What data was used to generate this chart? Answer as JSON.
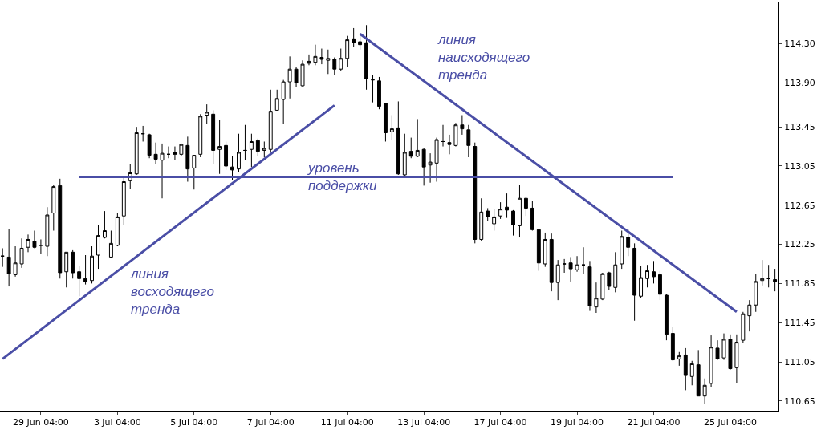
{
  "chart_data": {
    "type": "candlestick",
    "categories": [
      null,
      null,
      null,
      null,
      null,
      null,
      "29 Jun 04:00",
      null,
      null,
      null,
      null,
      null,
      null,
      null,
      null,
      null,
      null,
      null,
      "3 Jul 04:00",
      null,
      null,
      null,
      null,
      null,
      null,
      null,
      null,
      null,
      null,
      null,
      "5 Jul 04:00",
      null,
      null,
      null,
      null,
      null,
      null,
      null,
      null,
      null,
      null,
      null,
      "7 Jul 04:00",
      null,
      null,
      null,
      null,
      null,
      null,
      null,
      null,
      null,
      null,
      null,
      "11 Jul 04:00",
      null,
      null,
      null,
      null,
      null,
      null,
      null,
      null,
      null,
      null,
      null,
      "13 Jul 04:00",
      null,
      null,
      null,
      null,
      null,
      null,
      null,
      null,
      null,
      null,
      null,
      "17 Jul 04:00",
      null,
      null,
      null,
      null,
      null,
      null,
      null,
      null,
      null,
      null,
      null,
      "19 Jul 04:00",
      null,
      null,
      null,
      null,
      null,
      null,
      null,
      null,
      null,
      null,
      null,
      "21 Jul 04:00",
      null,
      null,
      null,
      null,
      null,
      null,
      null,
      null,
      null,
      null,
      null,
      "25 Jul 04:00",
      null,
      null,
      null,
      null,
      null,
      null,
      null
    ],
    "ohlc": [
      [
        112.13,
        112.21,
        112.02,
        112.13
      ],
      [
        112.12,
        112.41,
        111.82,
        111.95
      ],
      [
        111.94,
        112.23,
        111.92,
        112.06
      ],
      [
        112.05,
        112.31,
        112.01,
        112.21
      ],
      [
        112.22,
        112.35,
        112.17,
        112.3
      ],
      [
        112.28,
        112.39,
        112.21,
        112.22
      ],
      [
        112.24,
        112.3,
        112.15,
        112.24
      ],
      [
        112.23,
        112.63,
        112.13,
        112.55
      ],
      [
        112.57,
        112.86,
        112.39,
        112.84
      ],
      [
        112.85,
        112.92,
        111.9,
        111.96
      ],
      [
        111.97,
        112.17,
        111.81,
        112.17
      ],
      [
        112.17,
        112.19,
        111.9,
        111.96
      ],
      [
        111.97,
        112.03,
        111.72,
        111.9
      ],
      [
        111.9,
        112.14,
        111.84,
        111.87
      ],
      [
        111.88,
        112.23,
        111.85,
        112.13
      ],
      [
        112.14,
        112.45,
        112.0,
        112.34
      ],
      [
        112.32,
        112.59,
        112.31,
        112.39
      ],
      [
        112.12,
        112.39,
        112.11,
        112.26
      ],
      [
        112.24,
        112.57,
        112.23,
        112.53
      ],
      [
        112.54,
        112.94,
        112.45,
        112.89
      ],
      [
        112.9,
        113.07,
        112.82,
        112.98
      ],
      [
        112.97,
        113.45,
        112.96,
        113.39
      ],
      [
        113.38,
        113.46,
        113.3,
        113.38
      ],
      [
        113.37,
        113.38,
        113.13,
        113.16
      ],
      [
        113.17,
        113.29,
        113.07,
        113.12
      ],
      [
        113.11,
        113.28,
        112.72,
        113.18
      ],
      [
        113.17,
        113.25,
        113.13,
        113.17
      ],
      [
        113.19,
        113.25,
        113.11,
        113.17
      ],
      [
        113.17,
        113.28,
        113.15,
        113.27
      ],
      [
        113.26,
        113.35,
        112.89,
        113.02
      ],
      [
        113.03,
        113.16,
        112.81,
        113.16
      ],
      [
        113.17,
        113.58,
        113.14,
        113.56
      ],
      [
        113.57,
        113.68,
        113.48,
        113.6
      ],
      [
        113.58,
        113.62,
        113.07,
        113.21
      ],
      [
        113.22,
        113.52,
        112.97,
        113.25
      ],
      [
        113.26,
        113.3,
        113.01,
        113.05
      ],
      [
        113.04,
        113.15,
        112.91,
        113.01
      ],
      [
        113.02,
        113.38,
        112.99,
        113.19
      ],
      [
        113.21,
        113.47,
        113.11,
        113.21
      ],
      [
        113.22,
        113.38,
        113.04,
        113.3
      ],
      [
        113.31,
        113.33,
        113.15,
        113.2
      ],
      [
        113.21,
        113.3,
        113.14,
        113.23
      ],
      [
        113.22,
        113.83,
        113.19,
        113.61
      ],
      [
        113.62,
        113.83,
        113.62,
        113.74
      ],
      [
        113.73,
        113.93,
        113.48,
        113.91
      ],
      [
        113.91,
        114.17,
        113.74,
        114.04
      ],
      [
        114.04,
        114.06,
        113.86,
        113.9
      ],
      [
        113.87,
        114.13,
        113.86,
        114.09
      ],
      [
        114.1,
        114.19,
        114.08,
        114.12
      ],
      [
        114.11,
        114.29,
        114.08,
        114.17
      ],
      [
        114.16,
        114.25,
        114.09,
        114.14
      ],
      [
        114.13,
        114.24,
        113.99,
        114.15
      ],
      [
        114.14,
        114.16,
        113.98,
        114.04
      ],
      [
        114.04,
        114.25,
        114.02,
        114.15
      ],
      [
        114.15,
        114.38,
        114.06,
        114.34
      ],
      [
        114.35,
        114.46,
        114.27,
        114.31
      ],
      [
        114.32,
        114.39,
        114.24,
        114.29
      ],
      [
        114.31,
        114.49,
        113.83,
        113.94
      ],
      [
        113.93,
        113.98,
        113.7,
        113.93
      ],
      [
        113.92,
        113.96,
        113.63,
        113.66
      ],
      [
        113.69,
        113.69,
        113.3,
        113.39
      ],
      [
        113.4,
        113.57,
        113.32,
        113.43
      ],
      [
        113.44,
        113.71,
        112.96,
        112.97
      ],
      [
        112.96,
        113.38,
        112.95,
        113.19
      ],
      [
        113.2,
        113.34,
        113.13,
        113.15
      ],
      [
        113.15,
        113.53,
        113.14,
        113.21
      ],
      [
        113.22,
        113.23,
        112.85,
        113.04
      ],
      [
        113.06,
        113.18,
        112.88,
        113.09
      ],
      [
        113.08,
        113.34,
        112.89,
        113.32
      ],
      [
        113.3,
        113.47,
        113.25,
        113.3
      ],
      [
        113.29,
        113.37,
        113.17,
        113.27
      ],
      [
        113.26,
        113.49,
        113.25,
        113.47
      ],
      [
        113.47,
        113.57,
        113.37,
        113.43
      ],
      [
        113.42,
        113.47,
        113.14,
        113.26
      ],
      [
        113.25,
        113.29,
        112.26,
        112.3
      ],
      [
        112.3,
        112.72,
        112.28,
        112.58
      ],
      [
        112.59,
        112.62,
        112.49,
        112.53
      ],
      [
        112.46,
        112.61,
        112.39,
        112.53
      ],
      [
        112.54,
        112.68,
        112.51,
        112.61
      ],
      [
        112.63,
        112.77,
        112.52,
        112.6
      ],
      [
        112.59,
        112.6,
        112.34,
        112.45
      ],
      [
        112.44,
        112.86,
        112.32,
        112.72
      ],
      [
        112.72,
        112.73,
        112.54,
        112.62
      ],
      [
        112.62,
        112.69,
        112.39,
        112.4
      ],
      [
        112.4,
        112.41,
        111.98,
        112.06
      ],
      [
        112.05,
        112.37,
        112.02,
        112.3
      ],
      [
        112.3,
        112.36,
        111.77,
        111.86
      ],
      [
        111.86,
        112.09,
        111.68,
        112.04
      ],
      [
        112.05,
        112.1,
        111.96,
        112.05
      ],
      [
        112.06,
        112.12,
        111.87,
        112.0
      ],
      [
        111.99,
        112.13,
        111.97,
        112.04
      ],
      [
        112.04,
        112.22,
        111.95,
        112.04
      ],
      [
        112.02,
        112.08,
        111.57,
        111.62
      ],
      [
        111.61,
        111.86,
        111.55,
        111.7
      ],
      [
        111.69,
        111.96,
        111.68,
        111.95
      ],
      [
        111.96,
        111.97,
        111.78,
        111.82
      ],
      [
        111.81,
        112.17,
        111.76,
        112.04
      ],
      [
        112.05,
        112.39,
        112.0,
        112.33
      ],
      [
        112.32,
        112.4,
        112.13,
        112.22
      ],
      [
        112.21,
        112.26,
        111.47,
        111.73
      ],
      [
        111.72,
        112.03,
        111.7,
        111.91
      ],
      [
        111.9,
        112.04,
        111.81,
        111.98
      ],
      [
        111.97,
        112.08,
        111.85,
        111.92
      ],
      [
        111.94,
        111.98,
        111.68,
        111.74
      ],
      [
        111.73,
        111.74,
        111.27,
        111.33
      ],
      [
        111.34,
        111.41,
        111.06,
        111.07
      ],
      [
        111.08,
        111.15,
        111.01,
        111.11
      ],
      [
        111.12,
        111.19,
        110.76,
        110.91
      ],
      [
        110.9,
        111.06,
        110.81,
        111.03
      ],
      [
        111.02,
        111.17,
        110.7,
        110.7
      ],
      [
        110.7,
        110.88,
        110.62,
        110.81
      ],
      [
        110.83,
        111.32,
        110.79,
        111.2
      ],
      [
        111.19,
        111.27,
        111.07,
        111.08
      ],
      [
        111.09,
        111.34,
        111.07,
        111.28
      ],
      [
        111.28,
        111.33,
        110.97,
        110.98
      ],
      [
        110.99,
        111.33,
        110.83,
        111.25
      ],
      [
        111.27,
        111.56,
        111.24,
        111.54
      ],
      [
        111.52,
        111.68,
        111.36,
        111.63
      ],
      [
        111.63,
        111.95,
        111.56,
        111.87
      ],
      [
        111.88,
        112.09,
        111.83,
        111.9
      ],
      [
        111.9,
        112.04,
        111.81,
        111.9
      ],
      [
        111.89,
        112.0,
        111.77,
        111.87
      ]
    ],
    "series": [
      {
        "type": "line",
        "color": "#4a4ea6",
        "values": [
          111.08,
          null,
          null,
          null,
          null,
          null,
          null,
          null,
          null,
          null,
          null,
          null,
          null,
          null,
          null,
          null,
          null,
          null,
          null,
          null,
          null,
          null,
          null,
          null,
          null,
          null,
          null,
          null,
          null,
          null,
          null,
          null,
          null,
          null,
          null,
          null,
          null,
          null,
          null,
          null,
          null,
          null,
          null,
          null,
          null,
          null,
          null,
          null,
          null,
          null,
          null,
          null,
          113.67,
          null,
          null,
          null,
          null,
          null,
          null,
          null,
          null,
          null,
          null,
          null,
          null,
          null,
          null,
          null,
          null,
          null,
          null,
          null,
          null,
          null,
          null,
          null,
          null,
          null,
          null,
          null,
          null,
          null,
          null,
          null,
          null,
          null,
          null,
          null,
          null,
          null,
          null,
          null,
          null,
          null,
          null,
          null,
          null,
          null,
          null,
          null,
          null,
          null,
          null,
          null,
          null,
          null,
          null,
          null,
          null,
          null,
          null,
          null,
          null,
          null,
          null,
          null,
          null,
          null,
          null,
          null,
          null,
          null
        ]
      },
      {
        "type": "line",
        "color": "#4a4ea6",
        "values": [
          null,
          null,
          null,
          null,
          null,
          null,
          null,
          null,
          null,
          null,
          null,
          null,
          null,
          null,
          null,
          null,
          null,
          null,
          null,
          null,
          null,
          null,
          null,
          null,
          null,
          null,
          null,
          null,
          null,
          null,
          null,
          null,
          null,
          null,
          null,
          null,
          null,
          null,
          null,
          null,
          null,
          null,
          null,
          null,
          null,
          null,
          null,
          null,
          null,
          null,
          null,
          null,
          null,
          null,
          null,
          null,
          114.4,
          null,
          null,
          null,
          null,
          null,
          null,
          null,
          null,
          null,
          null,
          null,
          null,
          null,
          null,
          null,
          null,
          null,
          null,
          null,
          null,
          null,
          null,
          null,
          null,
          null,
          null,
          null,
          null,
          null,
          null,
          null,
          null,
          null,
          null,
          null,
          null,
          null,
          null,
          null,
          null,
          null,
          null,
          null,
          null,
          null,
          null,
          null,
          null,
          null,
          null,
          null,
          null,
          null,
          null,
          null,
          null,
          null,
          null,
          111.56,
          null,
          null,
          null,
          null,
          null,
          null
        ]
      },
      {
        "type": "line",
        "color": "#4a4ea6",
        "values": [
          null,
          null,
          null,
          null,
          null,
          null,
          null,
          null,
          null,
          null,
          null,
          null,
          112.94,
          null,
          null,
          null,
          null,
          null,
          null,
          null,
          null,
          null,
          null,
          null,
          null,
          null,
          null,
          null,
          null,
          null,
          null,
          null,
          null,
          null,
          null,
          null,
          null,
          null,
          null,
          null,
          null,
          null,
          null,
          null,
          null,
          null,
          null,
          null,
          null,
          null,
          null,
          null,
          null,
          null,
          null,
          null,
          null,
          null,
          null,
          null,
          null,
          null,
          null,
          null,
          null,
          null,
          null,
          null,
          null,
          null,
          null,
          null,
          null,
          null,
          null,
          null,
          null,
          null,
          null,
          null,
          null,
          null,
          null,
          null,
          null,
          null,
          null,
          null,
          null,
          null,
          null,
          null,
          null,
          null,
          null,
          null,
          null,
          null,
          null,
          null,
          null,
          null,
          null,
          null,
          null,
          112.94,
          null,
          null,
          null,
          null,
          null,
          null,
          null,
          null,
          null,
          null,
          null,
          null,
          null,
          null,
          null,
          null
        ]
      }
    ],
    "annotations": [
      "линия\nвосходящего\nтренда",
      "уровень\nподдержки",
      "линия\nнаисходящего\nтренда"
    ],
    "ylim": [
      110.55,
      114.73
    ],
    "yticks": [
      {
        "value": 110.65,
        "label": "110.65"
      },
      {
        "value": 111.05,
        "label": "111.05"
      },
      {
        "value": 111.45,
        "label": "111.45"
      },
      {
        "value": 111.85,
        "label": "111.85"
      },
      {
        "value": 112.25,
        "label": "112.25"
      },
      {
        "value": 112.65,
        "label": "112.65"
      },
      {
        "value": 113.05,
        "label": "113.05"
      },
      {
        "value": 113.45,
        "label": "113.45"
      },
      {
        "value": 113.9,
        "label": "113.90"
      },
      {
        "value": 114.3,
        "label": "114.30"
      }
    ]
  }
}
